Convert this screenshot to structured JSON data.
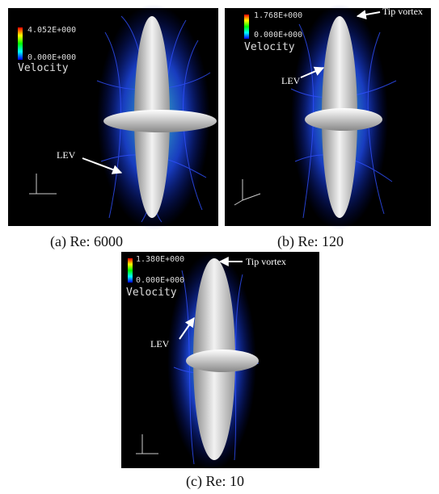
{
  "figure": {
    "panels": [
      {
        "legend_max": "4.052E+000",
        "legend_min": "0.000E+000",
        "legend_title": "Velocity",
        "annotations": [
          "LEV"
        ],
        "caption": "(a) Re: 6000"
      },
      {
        "legend_max": "1.768E+000",
        "legend_min": "0.000E+000",
        "legend_title": "Velocity",
        "annotations": [
          "Tip vortex",
          "LEV"
        ],
        "caption": "(b) Re: 120"
      },
      {
        "legend_max": "1.380E+000",
        "legend_min": "0.000E+000",
        "legend_title": "Velocity",
        "annotations": [
          "Tip vortex",
          "LEV"
        ],
        "caption": "(c) Re: 10"
      }
    ]
  }
}
